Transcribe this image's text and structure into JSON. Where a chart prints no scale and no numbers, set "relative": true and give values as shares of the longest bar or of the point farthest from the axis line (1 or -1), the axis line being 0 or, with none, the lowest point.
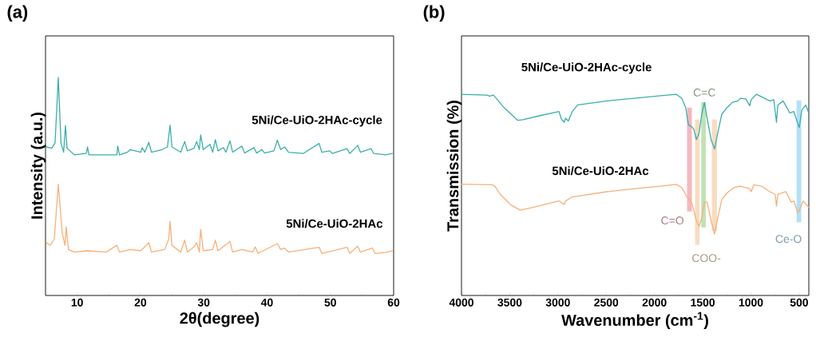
{
  "chart_data": [
    {
      "type": "line",
      "relative": true,
      "xlabel": "2θ(degree)",
      "ylabel": "Intensity (a.u.)",
      "annotations": [
        "(a)"
      ],
      "xlim": [
        5,
        60
      ],
      "xticks": [
        10,
        20,
        30,
        40,
        50,
        60
      ],
      "series": [
        {
          "name": "5Ni/Ce-UiO-2HAc-cycle",
          "color": "#3aafa9",
          "x": [
            5.13,
            5.97,
            6.51,
            7.02,
            7.44,
            7.86,
            8.15,
            8.41,
            9.54,
            11.43,
            11.64,
            11.85,
            16.27,
            16.4,
            16.69,
            17.95,
            18.37,
            20.05,
            20.26,
            20.69,
            21.32,
            21.74,
            23.42,
            24.26,
            24.68,
            24.97,
            26.36,
            26.99,
            27.41,
            28.46,
            28.88,
            29.3,
            29.51,
            29.93,
            30.99,
            31.41,
            31.83,
            32.25,
            33.09,
            33.51,
            34.14,
            34.56,
            36.03,
            36.45,
            37.93,
            38.35,
            39.19,
            39.61,
            41.08,
            41.63,
            42.14,
            42.77,
            43.39,
            45.7,
            48.23,
            48.65,
            49.91,
            50.33,
            52.64,
            53.06,
            54.32,
            54.75,
            56.43,
            56.85,
            58.74,
            59.79
          ],
          "values": [
            0.681,
            0.675,
            0.7,
            1.0,
            0.7,
            0.657,
            0.779,
            0.675,
            0.645,
            0.651,
            0.681,
            0.645,
            0.645,
            0.685,
            0.645,
            0.657,
            0.669,
            0.657,
            0.678,
            0.657,
            0.702,
            0.657,
            0.669,
            0.681,
            0.781,
            0.681,
            0.657,
            0.706,
            0.663,
            0.675,
            0.706,
            0.669,
            0.736,
            0.669,
            0.693,
            0.657,
            0.714,
            0.663,
            0.678,
            0.657,
            0.709,
            0.657,
            0.685,
            0.653,
            0.678,
            0.653,
            0.669,
            0.653,
            0.663,
            0.712,
            0.669,
            0.681,
            0.657,
            0.651,
            0.697,
            0.657,
            0.663,
            0.651,
            0.673,
            0.651,
            0.688,
            0.657,
            0.673,
            0.651,
            0.645,
            0.651
          ]
        },
        {
          "name": "5Ni/Ce-UiO-2HAc",
          "color": "#f7b07a",
          "x": [
            5.13,
            5.76,
            6.39,
            7.02,
            7.65,
            8.07,
            8.28,
            8.62,
            9.54,
            11.64,
            14.59,
            16.27,
            16.69,
            18.37,
            20.05,
            21.32,
            21.74,
            23.84,
            24.47,
            24.68,
            24.97,
            26.36,
            26.99,
            27.41,
            28.46,
            28.88,
            29.3,
            29.51,
            29.93,
            31.41,
            31.83,
            32.25,
            34.14,
            34.56,
            36.03,
            37.71,
            38.14,
            38.56,
            41.63,
            42.14,
            42.77,
            43.39,
            48.23,
            48.65,
            52.64,
            53.06,
            54.32,
            54.75,
            56.64,
            57.06,
            58.74,
            59.79
          ],
          "values": [
            0.242,
            0.23,
            0.26,
            0.51,
            0.285,
            0.23,
            0.315,
            0.211,
            0.199,
            0.205,
            0.199,
            0.23,
            0.199,
            0.211,
            0.205,
            0.242,
            0.199,
            0.211,
            0.26,
            0.339,
            0.23,
            0.199,
            0.254,
            0.199,
            0.223,
            0.242,
            0.199,
            0.303,
            0.205,
            0.211,
            0.254,
            0.205,
            0.248,
            0.199,
            0.211,
            0.199,
            0.223,
            0.193,
            0.238,
            0.211,
            0.217,
            0.199,
            0.221,
            0.193,
            0.221,
            0.193,
            0.226,
            0.199,
            0.217,
            0.193,
            0.197,
            0.205
          ]
        }
      ]
    },
    {
      "type": "line",
      "relative": true,
      "xlabel": "Wavenumber (cm$^{-1}$)",
      "ylabel": "Transmission (%)",
      "annotations": [
        "(b)"
      ],
      "xlim": [
        4000,
        400
      ],
      "xticks": [
        4000,
        3500,
        3000,
        2500,
        2000,
        1500,
        1000,
        500
      ],
      "bands": [
        {
          "axis": "x",
          "from": 1662,
          "to": 1612,
          "label": "C=O",
          "color": "#f4b8bf"
        },
        {
          "axis": "x",
          "from": 1579,
          "to": 1532,
          "label": "COO-",
          "color": "#f8dcc0"
        },
        {
          "axis": "x",
          "from": 1515,
          "to": 1468,
          "label": "C=C",
          "color": "#bfe3b5"
        },
        {
          "axis": "x",
          "from": 1405,
          "to": 1352,
          "color": "#f8dcc0"
        },
        {
          "axis": "x",
          "from": 527,
          "to": 478,
          "label": "Ce-O",
          "color": "#b3e0f7"
        }
      ],
      "series": [
        {
          "name": "5Ni/Ce-UiO-2HAc-cycle",
          "color": "#3aafa9",
          "x": [
            4000,
            3737,
            3709,
            3668,
            3640,
            3571,
            3419,
            3364,
            3184,
            2990,
            2962,
            2935,
            2921,
            2893,
            2852,
            2796,
            2492,
            2215,
            1939,
            1773,
            1717,
            1676,
            1648,
            1620,
            1593,
            1565,
            1537,
            1510,
            1482,
            1454,
            1413,
            1377,
            1344,
            1302,
            1247,
            1192,
            1136,
            1108,
            1053,
            1012,
            998,
            943,
            887,
            804,
            763,
            735,
            721,
            666,
            597,
            555,
            500,
            472,
            431,
            400
          ],
          "values": [
            1.0,
            0.996,
            0.991,
            0.996,
            0.98,
            0.94,
            0.871,
            0.874,
            0.894,
            0.914,
            0.874,
            0.861,
            0.881,
            0.867,
            0.914,
            0.947,
            0.967,
            0.98,
            0.993,
            1.0,
            0.98,
            0.934,
            0.848,
            0.841,
            0.828,
            0.775,
            0.808,
            0.901,
            0.96,
            0.881,
            0.775,
            0.728,
            0.808,
            0.901,
            0.934,
            0.96,
            0.967,
            0.98,
            0.977,
            0.943,
            0.973,
            1.0,
            0.987,
            0.967,
            0.973,
            0.861,
            0.947,
            0.967,
            0.907,
            0.914,
            0.834,
            0.921,
            0.947,
            0.907
          ]
        },
        {
          "name": "5Ni/Ce-UiO-2HAc",
          "color": "#f7b07a",
          "x": [
            4000,
            3682,
            3654,
            3599,
            3488,
            3391,
            3267,
            2990,
            2962,
            2935,
            2921,
            2852,
            2492,
            2215,
            1939,
            1773,
            1717,
            1662,
            1634,
            1607,
            1565,
            1537,
            1510,
            1482,
            1454,
            1413,
            1377,
            1344,
            1302,
            1247,
            1178,
            1108,
            1012,
            998,
            970,
            887,
            804,
            749,
            735,
            721,
            638,
            583,
            555,
            514,
            486,
            458,
            400
          ],
          "values": [
            0.553,
            0.55,
            0.543,
            0.503,
            0.45,
            0.424,
            0.437,
            0.47,
            0.461,
            0.453,
            0.47,
            0.49,
            0.516,
            0.53,
            0.543,
            0.552,
            0.536,
            0.49,
            0.477,
            0.45,
            0.371,
            0.344,
            0.384,
            0.464,
            0.464,
            0.371,
            0.305,
            0.384,
            0.477,
            0.51,
            0.536,
            0.543,
            0.53,
            0.516,
            0.55,
            0.543,
            0.516,
            0.503,
            0.444,
            0.503,
            0.516,
            0.464,
            0.47,
            0.41,
            0.437,
            0.47,
            0.437
          ]
        }
      ]
    }
  ]
}
